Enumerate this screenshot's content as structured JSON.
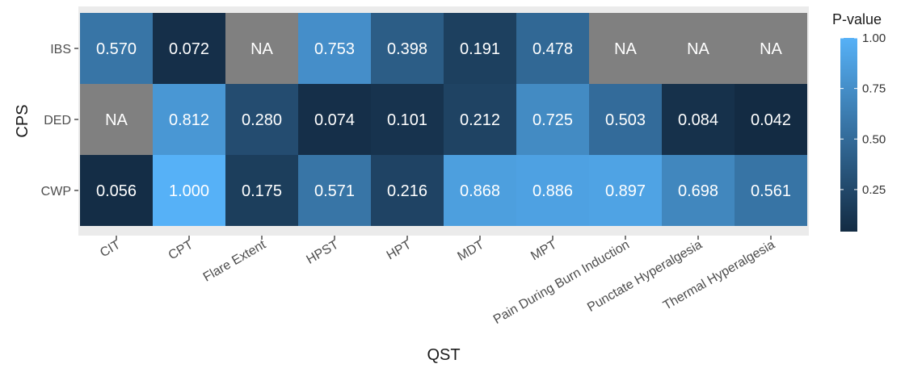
{
  "chart_data": {
    "type": "heatmap",
    "xlabel": "QST",
    "ylabel": "CPS",
    "x_categories": [
      "CIT",
      "CPT",
      "Flare Extent",
      "HPST",
      "HPT",
      "MDT",
      "MPT",
      "Pain During Burn Induction",
      "Punctate Hyperalgesia",
      "Thermal Hyperalgesia"
    ],
    "y_categories": [
      "IBS",
      "DED",
      "CWP"
    ],
    "values": [
      [
        0.57,
        0.072,
        null,
        0.753,
        0.398,
        0.191,
        0.478,
        null,
        null,
        null
      ],
      [
        null,
        0.812,
        0.28,
        0.074,
        0.101,
        0.212,
        0.725,
        0.503,
        0.084,
        0.042
      ],
      [
        0.056,
        1.0,
        0.175,
        0.571,
        0.216,
        0.868,
        0.886,
        0.897,
        0.698,
        0.561
      ]
    ],
    "cell_labels": [
      [
        "0.570",
        "0.072",
        "NA",
        "0.753",
        "0.398",
        "0.191",
        "0.478",
        "NA",
        "NA",
        "NA"
      ],
      [
        "NA",
        "0.812",
        "0.280",
        "0.074",
        "0.101",
        "0.212",
        "0.725",
        "0.503",
        "0.084",
        "0.042"
      ],
      [
        "0.056",
        "1.000",
        "0.175",
        "0.571",
        "0.216",
        "0.868",
        "0.886",
        "0.897",
        "0.698",
        "0.561"
      ]
    ],
    "legend": {
      "title": "P-value",
      "ticks": [
        1.0,
        0.75,
        0.5,
        0.25
      ],
      "tick_labels": [
        "1.00",
        "0.75",
        "0.50",
        "0.25"
      ],
      "range": [
        0.042,
        1.0
      ],
      "placement": "right"
    },
    "colors": {
      "low": "#132B43",
      "high": "#56B1F7",
      "na": "#808080",
      "panel_background": "#EBEBEB"
    }
  }
}
